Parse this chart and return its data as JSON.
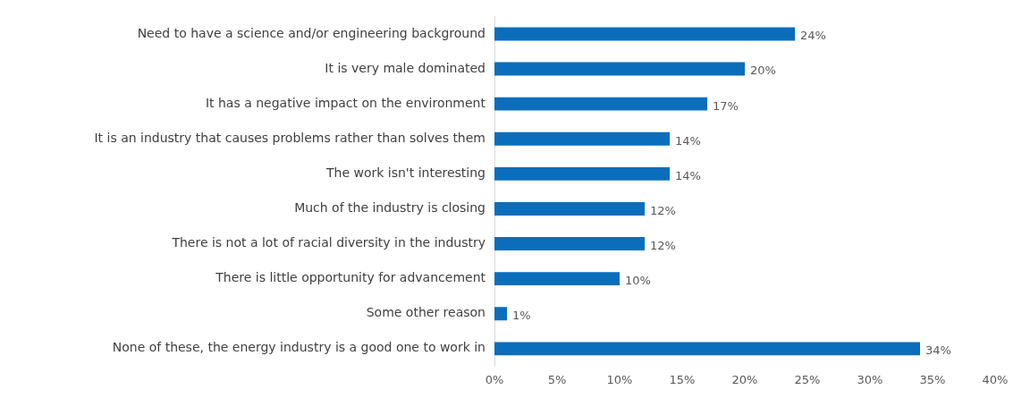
{
  "chart_data": {
    "type": "bar",
    "orientation": "horizontal",
    "categories": [
      "Need to have a science and/or engineering background",
      "It is very male dominated",
      "It has a negative impact on the environment",
      "It is an industry that causes problems rather than solves them",
      "The work isn't interesting",
      "Much of the industry is closing",
      "There is not a lot of racial diversity in the industry",
      "There is little opportunity for advancement",
      "Some other reason",
      "None of these, the energy industry is a good one to work in"
    ],
    "values": [
      24,
      20,
      17,
      14,
      14,
      12,
      12,
      10,
      1,
      34
    ],
    "value_labels": [
      "24%",
      "20%",
      "17%",
      "14%",
      "14%",
      "12%",
      "12%",
      "10%",
      "1%",
      "34%"
    ],
    "color": "#0a6ebd",
    "xlim": [
      0,
      40
    ],
    "xticks": [
      {
        "value": 0,
        "label": "0%"
      },
      {
        "value": 5,
        "label": "5%"
      },
      {
        "value": 10,
        "label": "10%"
      },
      {
        "value": 15,
        "label": "15%"
      },
      {
        "value": 20,
        "label": "20%"
      },
      {
        "value": 25,
        "label": "25%"
      },
      {
        "value": 30,
        "label": "30%"
      },
      {
        "value": 35,
        "label": "35%"
      },
      {
        "value": 40,
        "label": "40%"
      }
    ],
    "grid": false,
    "legend": false
  }
}
